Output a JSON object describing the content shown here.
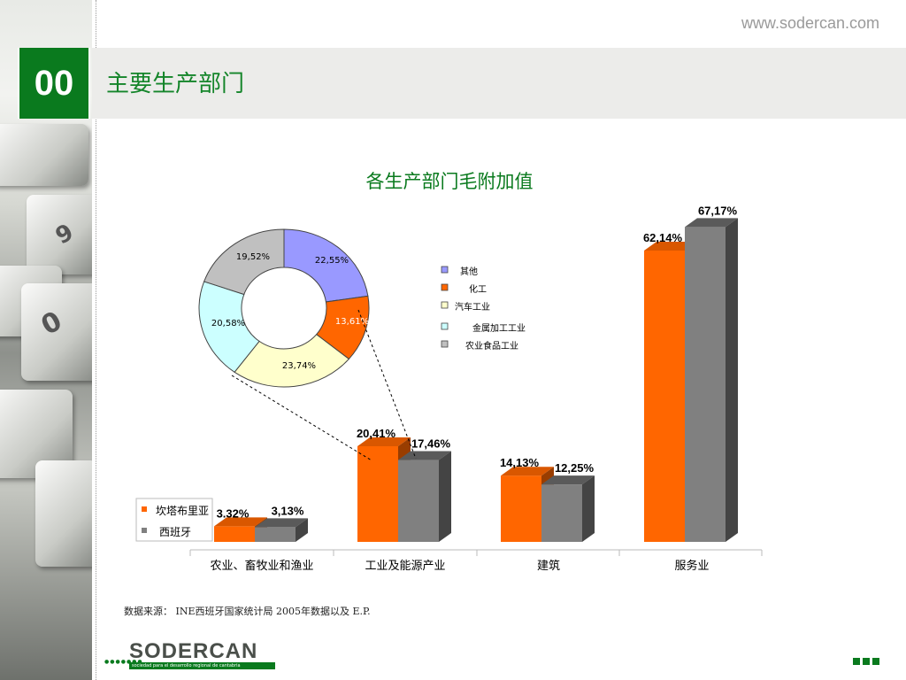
{
  "header": {
    "section_number": "00",
    "title": "主要生产部门",
    "site_url": "www.sodercan.com"
  },
  "chart_data": [
    {
      "type": "bar",
      "categories": [
        "农业、畜牧业和渔业",
        "工业及能源产业",
        "建筑",
        "服务业"
      ],
      "series": [
        {
          "name": "坎塔布里亚",
          "values": [
            3.32,
            20.41,
            14.13,
            62.14
          ],
          "labels": [
            "3.32%",
            "20,41%",
            "14,13%",
            "62,14%"
          ],
          "color": "#ff6600"
        },
        {
          "name": "西班牙",
          "values": [
            3.13,
            17.46,
            12.25,
            67.17
          ],
          "labels": [
            "3,13%",
            "17,46%",
            "12,25%",
            "67,17%"
          ],
          "color": "#808080"
        }
      ],
      "ylim": [
        0,
        70
      ],
      "grid": false,
      "legend": "bottom-left",
      "style": "3d"
    },
    {
      "type": "pie",
      "variant": "donut",
      "title": "各生产部门毛附加值",
      "categories": [
        "其他",
        "化工",
        "汽车工业",
        "金属加工工业",
        "农业食品工业"
      ],
      "values": [
        22.55,
        13.61,
        23.74,
        20.58,
        19.52
      ],
      "labels": [
        "22,55%",
        "13,61%",
        "23,74%",
        "20,58%",
        "19,52%"
      ],
      "colors": [
        "#9999ff",
        "#ff6600",
        "#ffffcc",
        "#ccffff",
        "#c0c0c0"
      ],
      "legend": "right"
    }
  ],
  "footer": {
    "source_note": "数据来源： INE西班牙国家统计局 2005年数据以及 E.P.",
    "logo_text": "SODERCAN",
    "logo_tagline": "sociedad para el desarrollo regional de cantabria"
  }
}
